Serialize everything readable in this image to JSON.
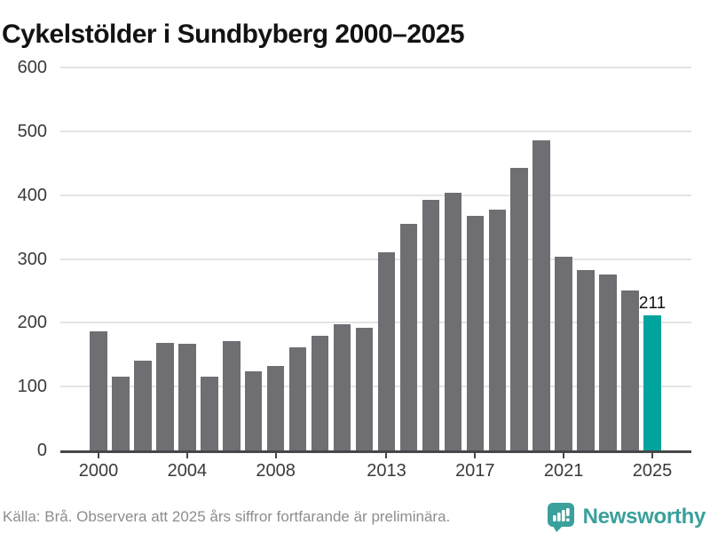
{
  "title": "Cykelstölder i Sundbyberg 2000–2025",
  "footer": {
    "source_note": "Källa: Brå. Observera att 2025 års siffror fortfarande är preliminära."
  },
  "branding": {
    "logo_text": "Newsworthy",
    "logo_icon": "newsworthy-speech-bubble-bar-chart-icon"
  },
  "colors": {
    "bar": "#6e6e73",
    "highlight_bar": "#00a49c",
    "gridline": "#e4e4e4",
    "axis": "#47474b",
    "tick_label": "#3a3a3e",
    "title_text": "#131313",
    "footer_text": "#8d8d8d",
    "brand_teal": "#3aa09c"
  },
  "chart_data": {
    "type": "bar",
    "title": "Cykelstölder i Sundbyberg 2000–2025",
    "xlabel": "",
    "ylabel": "",
    "categories": [
      2000,
      2001,
      2002,
      2003,
      2004,
      2005,
      2006,
      2007,
      2008,
      2009,
      2010,
      2011,
      2012,
      2013,
      2014,
      2015,
      2016,
      2017,
      2018,
      2019,
      2020,
      2021,
      2022,
      2023,
      2024,
      2025
    ],
    "values": [
      186,
      115,
      140,
      169,
      167,
      116,
      171,
      124,
      132,
      161,
      179,
      198,
      192,
      311,
      355,
      393,
      404,
      368,
      377,
      443,
      486,
      304,
      283,
      275,
      250,
      211
    ],
    "highlight_category": 2025,
    "highlight_value_label": "211",
    "ylim": [
      0,
      600
    ],
    "yticks": [
      0,
      100,
      200,
      300,
      400,
      500,
      600
    ],
    "xticks": [
      2000,
      2004,
      2008,
      2013,
      2017,
      2021,
      2025
    ],
    "grid": "horizontal",
    "legend": "none"
  }
}
